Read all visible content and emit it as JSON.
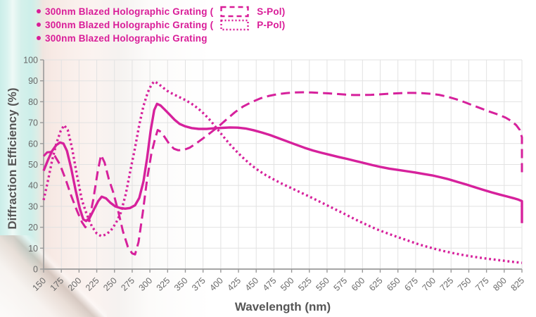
{
  "legend": {
    "items": [
      {
        "prefix": "300nm Blazed Holographic Grating ( ",
        "swatch": "dashed",
        "suffix": " S-Pol)"
      },
      {
        "prefix": "300nm Blazed Holographic Grating ( ",
        "swatch": "dotted",
        "suffix": " P-Pol)"
      },
      {
        "prefix": "300nm Blazed Holographic Grating",
        "swatch": "none",
        "suffix": ""
      }
    ]
  },
  "colors": {
    "series": "#D6219C",
    "legend_text": "#D91C98",
    "axis_title_text": "#565656",
    "tick_text": "#6A6A6A",
    "grid": "#E2E2E2",
    "axis_line": "#9A9A9A",
    "bg_left_cyan": "#CDEFEA",
    "bg_pink_band": "#F7E9E4"
  },
  "chart_data": {
    "type": "line",
    "title": "",
    "xlabel": "Wavelength (nm)",
    "ylabel": "Diffraction Efficiency (%)",
    "xlim": [
      150,
      825
    ],
    "ylim": [
      0,
      100
    ],
    "grid": true,
    "legend_position": "top-left",
    "x_ticks": [
      150,
      175,
      200,
      225,
      250,
      275,
      300,
      325,
      350,
      375,
      400,
      425,
      450,
      475,
      500,
      525,
      550,
      575,
      600,
      625,
      650,
      675,
      700,
      725,
      750,
      775,
      800,
      825
    ],
    "y_ticks": [
      0,
      10,
      20,
      30,
      40,
      50,
      60,
      70,
      80,
      90,
      100
    ],
    "series": [
      {
        "name": "300nm Blazed Holographic Grating (S-Pol)",
        "style": "dashed",
        "points": [
          [
            150,
            54
          ],
          [
            155,
            55.8
          ],
          [
            160,
            56
          ],
          [
            166,
            54
          ],
          [
            173,
            50
          ],
          [
            181,
            43
          ],
          [
            189,
            35
          ],
          [
            197,
            28
          ],
          [
            204,
            22.5
          ],
          [
            209,
            20
          ],
          [
            214,
            23
          ],
          [
            220,
            33
          ],
          [
            226,
            46
          ],
          [
            231,
            54.5
          ],
          [
            236,
            51
          ],
          [
            242,
            43
          ],
          [
            248,
            37
          ],
          [
            255,
            28
          ],
          [
            262,
            18
          ],
          [
            269,
            10.5
          ],
          [
            275,
            7.5
          ],
          [
            279,
            7
          ],
          [
            284,
            13
          ],
          [
            290,
            27
          ],
          [
            296,
            43
          ],
          [
            302,
            55
          ],
          [
            307,
            62
          ],
          [
            311,
            66.5
          ],
          [
            316,
            65.5
          ],
          [
            322,
            62.5
          ],
          [
            328,
            59.5
          ],
          [
            334,
            57.5
          ],
          [
            340,
            56.8
          ],
          [
            348,
            57
          ],
          [
            356,
            58
          ],
          [
            365,
            60
          ],
          [
            375,
            62.5
          ],
          [
            386,
            65.3
          ],
          [
            397,
            68.2
          ],
          [
            408,
            71.5
          ],
          [
            420,
            75
          ],
          [
            432,
            77.8
          ],
          [
            444,
            79.9
          ],
          [
            456,
            81.6
          ],
          [
            468,
            82.8
          ],
          [
            480,
            83.6
          ],
          [
            492,
            84.1
          ],
          [
            504,
            84.4
          ],
          [
            516,
            84.5
          ],
          [
            528,
            84.4
          ],
          [
            540,
            84.2
          ],
          [
            552,
            84
          ],
          [
            564,
            83.7
          ],
          [
            576,
            83.4
          ],
          [
            588,
            83.2
          ],
          [
            600,
            83.2
          ],
          [
            612,
            83.3
          ],
          [
            624,
            83.5
          ],
          [
            636,
            83.8
          ],
          [
            648,
            84
          ],
          [
            660,
            84.2
          ],
          [
            672,
            84.2
          ],
          [
            684,
            84.1
          ],
          [
            696,
            83.8
          ],
          [
            708,
            83.3
          ],
          [
            720,
            82.4
          ],
          [
            732,
            81.2
          ],
          [
            744,
            79.8
          ],
          [
            756,
            78.2
          ],
          [
            768,
            76.7
          ],
          [
            780,
            75.2
          ],
          [
            792,
            73.8
          ],
          [
            802,
            72.4
          ],
          [
            810,
            70.8
          ],
          [
            817,
            68.8
          ],
          [
            822,
            66.5
          ],
          [
            825,
            63
          ],
          [
            825,
            44
          ]
        ]
      },
      {
        "name": "300nm Blazed Holographic Grating (P-Pol)",
        "style": "dotted",
        "points": [
          [
            150,
            33
          ],
          [
            156,
            42
          ],
          [
            162,
            52
          ],
          [
            168,
            60
          ],
          [
            174,
            66
          ],
          [
            179,
            68.8
          ],
          [
            184,
            66.5
          ],
          [
            190,
            58
          ],
          [
            197,
            45
          ],
          [
            204,
            33
          ],
          [
            211,
            26
          ],
          [
            218,
            20.5
          ],
          [
            225,
            17
          ],
          [
            231,
            15.8
          ],
          [
            238,
            16.5
          ],
          [
            245,
            18.5
          ],
          [
            252,
            22
          ],
          [
            259,
            27
          ],
          [
            266,
            36
          ],
          [
            273,
            48
          ],
          [
            279,
            58
          ],
          [
            285,
            69
          ],
          [
            291,
            78
          ],
          [
            297,
            84.5
          ],
          [
            302,
            88
          ],
          [
            306,
            89.7
          ],
          [
            311,
            88.8
          ],
          [
            317,
            87.2
          ],
          [
            324,
            85.3
          ],
          [
            332,
            83.8
          ],
          [
            341,
            82.3
          ],
          [
            350,
            80.8
          ],
          [
            359,
            79
          ],
          [
            368,
            76.8
          ],
          [
            377,
            74
          ],
          [
            386,
            70.8
          ],
          [
            395,
            67
          ],
          [
            404,
            63.2
          ],
          [
            413,
            59.6
          ],
          [
            423,
            56
          ],
          [
            433,
            52.7
          ],
          [
            443,
            49.7
          ],
          [
            453,
            47.2
          ],
          [
            464,
            44.8
          ],
          [
            475,
            42.8
          ],
          [
            487,
            40.7
          ],
          [
            499,
            38.8
          ],
          [
            511,
            36.9
          ],
          [
            523,
            35
          ],
          [
            535,
            33
          ],
          [
            547,
            31
          ],
          [
            559,
            29
          ],
          [
            571,
            27
          ],
          [
            583,
            24.9
          ],
          [
            595,
            22.9
          ],
          [
            607,
            21
          ],
          [
            619,
            19.2
          ],
          [
            631,
            17.6
          ],
          [
            643,
            16.1
          ],
          [
            655,
            14.7
          ],
          [
            667,
            13.3
          ],
          [
            679,
            11.9
          ],
          [
            691,
            10.7
          ],
          [
            703,
            9.6
          ],
          [
            715,
            8.6
          ],
          [
            727,
            7.7
          ],
          [
            739,
            6.9
          ],
          [
            751,
            6.2
          ],
          [
            763,
            5.6
          ],
          [
            775,
            5
          ],
          [
            787,
            4.5
          ],
          [
            799,
            4
          ],
          [
            811,
            3.5
          ],
          [
            825,
            3
          ]
        ]
      },
      {
        "name": "300nm Blazed Holographic Grating",
        "style": "solid",
        "points": [
          [
            150,
            47
          ],
          [
            156,
            52
          ],
          [
            162,
            56.5
          ],
          [
            168,
            59.3
          ],
          [
            173,
            60.5
          ],
          [
            178,
            60
          ],
          [
            183,
            56.5
          ],
          [
            189,
            48
          ],
          [
            195,
            38
          ],
          [
            201,
            29
          ],
          [
            206,
            23.8
          ],
          [
            210,
            23
          ],
          [
            215,
            24.5
          ],
          [
            221,
            28.5
          ],
          [
            227,
            32.5
          ],
          [
            232,
            34.6
          ],
          [
            238,
            33.8
          ],
          [
            244,
            31.8
          ],
          [
            251,
            30
          ],
          [
            258,
            29.2
          ],
          [
            265,
            28.9
          ],
          [
            272,
            29.2
          ],
          [
            279,
            30.5
          ],
          [
            285,
            34
          ],
          [
            291,
            42
          ],
          [
            296,
            53
          ],
          [
            301,
            66
          ],
          [
            306,
            76
          ],
          [
            310,
            79
          ],
          [
            315,
            78.2
          ],
          [
            321,
            76.2
          ],
          [
            328,
            73.8
          ],
          [
            335,
            71.3
          ],
          [
            342,
            69.4
          ],
          [
            350,
            68.2
          ],
          [
            359,
            67.4
          ],
          [
            369,
            67
          ],
          [
            380,
            67
          ],
          [
            391,
            67.3
          ],
          [
            402,
            67.5
          ],
          [
            413,
            67.7
          ],
          [
            424,
            67.6
          ],
          [
            435,
            67.2
          ],
          [
            446,
            66.4
          ],
          [
            458,
            65.3
          ],
          [
            470,
            64
          ],
          [
            482,
            62.5
          ],
          [
            494,
            61
          ],
          [
            506,
            59.5
          ],
          [
            518,
            58
          ],
          [
            530,
            56.7
          ],
          [
            542,
            55.6
          ],
          [
            554,
            54.6
          ],
          [
            566,
            53.6
          ],
          [
            578,
            52.7
          ],
          [
            590,
            51.7
          ],
          [
            602,
            50.7
          ],
          [
            614,
            49.7
          ],
          [
            626,
            48.8
          ],
          [
            638,
            48
          ],
          [
            650,
            47.4
          ],
          [
            662,
            46.8
          ],
          [
            674,
            46.2
          ],
          [
            686,
            45.5
          ],
          [
            698,
            44.8
          ],
          [
            710,
            43.9
          ],
          [
            722,
            42.9
          ],
          [
            734,
            41.7
          ],
          [
            746,
            40.5
          ],
          [
            758,
            39.2
          ],
          [
            770,
            37.9
          ],
          [
            782,
            36.7
          ],
          [
            794,
            35.6
          ],
          [
            804,
            34.7
          ],
          [
            813,
            33.9
          ],
          [
            820,
            33.2
          ],
          [
            825,
            32.5
          ],
          [
            825,
            22
          ]
        ]
      }
    ]
  }
}
